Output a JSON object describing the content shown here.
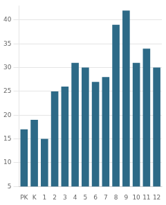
{
  "chart_data": {
    "type": "bar",
    "categories": [
      "PK",
      "K",
      "1",
      "2",
      "3",
      "4",
      "5",
      "6",
      "7",
      "8",
      "9",
      "10",
      "11",
      "12"
    ],
    "values": [
      17,
      19,
      15,
      25,
      26,
      31,
      30,
      27,
      28,
      39,
      42,
      31,
      34,
      30
    ],
    "color": "#2d6a87",
    "ylim": [
      5,
      43
    ],
    "yticks": [
      5,
      10,
      15,
      20,
      25,
      30,
      35,
      40
    ],
    "grid": true
  }
}
